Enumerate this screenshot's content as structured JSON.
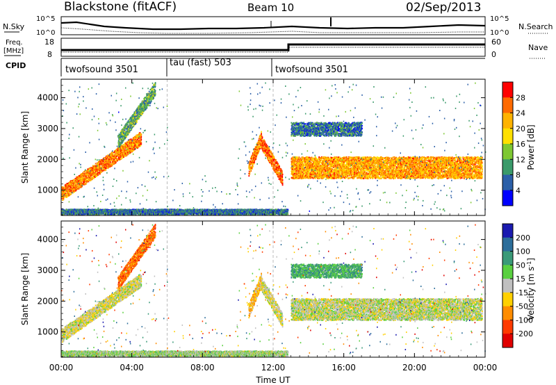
{
  "header": {
    "station": "Blackstone (fitACF)",
    "beam": "Beam 10",
    "date": "02/Sep/2013"
  },
  "side_labels": {
    "nsky": "N.Sky",
    "freq_line1": "Freq.",
    "freq_line2": "[MHz]",
    "cpid": "CPID",
    "nsearch": "N.Search",
    "nave": "Nave"
  },
  "noise_axis": {
    "left_top": "10^5",
    "left_bottom": "10^0",
    "right_top": "10^5",
    "right_bottom": "10^0"
  },
  "freq_axis": {
    "left_ticks": [
      "18",
      "8"
    ],
    "right_ticks": [
      "60",
      "0"
    ]
  },
  "cpid_segments": [
    {
      "label": "twofsound 3501",
      "start_hour": 0,
      "end_hour": 6
    },
    {
      "label": "tau (fast) 503",
      "start_hour": 6,
      "end_hour": 12
    },
    {
      "label": "twofsound 3501",
      "start_hour": 12,
      "end_hour": 24
    }
  ],
  "time_axis": {
    "label": "Time UT",
    "ticks": [
      "00:00",
      "04:00",
      "08:00",
      "12:00",
      "16:00",
      "20:00",
      "00:00"
    ],
    "tick_hours": [
      0,
      4,
      8,
      12,
      16,
      20,
      24
    ]
  },
  "range_axis": {
    "label": "Slant Range [km]",
    "ticks": [
      "1000",
      "2000",
      "3000",
      "4000"
    ],
    "tick_values": [
      1000,
      2000,
      3000,
      4000
    ],
    "min": 180,
    "max": 4600
  },
  "power_colorbar": {
    "label": "Power [dB]",
    "ticks": [
      "28",
      "24",
      "20",
      "16",
      "12",
      "8",
      "4"
    ],
    "colors": [
      "#ff0000",
      "#ff6a00",
      "#ffb300",
      "#ffe000",
      "#7ec832",
      "#3a9a6a",
      "#2b5fa8",
      "#0000ff"
    ]
  },
  "velocity_colorbar": {
    "label": "Velocity [m s^-1]",
    "label_main": "Velocity [m s",
    "label_sup": "-1",
    "label_end": "]",
    "ticks": [
      "200",
      "100",
      "50",
      "15",
      "-15",
      "-50",
      "-100",
      "-200"
    ],
    "colors": [
      "#1a1ab0",
      "#2c6e9a",
      "#3a9a78",
      "#5ad040",
      "#c0c0c0",
      "#ffd000",
      "#ff8c00",
      "#ff3a00",
      "#e00000"
    ]
  },
  "chart_data": {
    "type": "heatmap",
    "title": "Blackstone (fitACF)",
    "xlabel": "Time UT",
    "ylabel": "Slant Range [km]",
    "xlim_hours": [
      0,
      24
    ],
    "ylim_km": [
      180,
      4600
    ],
    "panels": [
      "Power [dB]",
      "Velocity [m s-1]"
    ],
    "power_scale_db": [
      0,
      30
    ],
    "velocity_scale_ms": [
      -200,
      200
    ],
    "features": [
      {
        "name": "morning arc",
        "start_hour": 0.0,
        "end_hour": 4.5,
        "range_start_km": 900,
        "range_end_km": 2700,
        "power_db": 24,
        "velocity_ms": -15
      },
      {
        "name": "late arc",
        "start_hour": 3.2,
        "end_hour": 5.3,
        "range_start_km": 2600,
        "range_end_km": 4300,
        "power_db": 10,
        "velocity_ms": -120
      },
      {
        "name": "ground band",
        "start_hour": 0.0,
        "end_hour": 12.8,
        "range_start_km": 320,
        "range_end_km": 320,
        "power_db": 6,
        "velocity_ms": 20
      },
      {
        "name": "pre-noon arc",
        "start_hour": 10.6,
        "end_hour": 11.3,
        "range_start_km": 1700,
        "range_end_km": 2700,
        "power_db": 24,
        "velocity_ms": -60
      },
      {
        "name": "noon band",
        "start_hour": 11.3,
        "end_hour": 12.5,
        "range_start_km": 2600,
        "range_end_km": 1400,
        "power_db": 26,
        "velocity_ms": -15
      },
      {
        "name": "afternoon band",
        "start_hour": 13.0,
        "end_hour": 23.8,
        "range_start_km": 1750,
        "range_end_km": 1750,
        "power_db": 22,
        "velocity_ms": 0
      },
      {
        "name": "3000 km echo line",
        "start_hour": 13.0,
        "end_hour": 17.0,
        "range_start_km": 3000,
        "range_end_km": 3000,
        "power_db": 6,
        "velocity_ms": 80
      }
    ]
  }
}
